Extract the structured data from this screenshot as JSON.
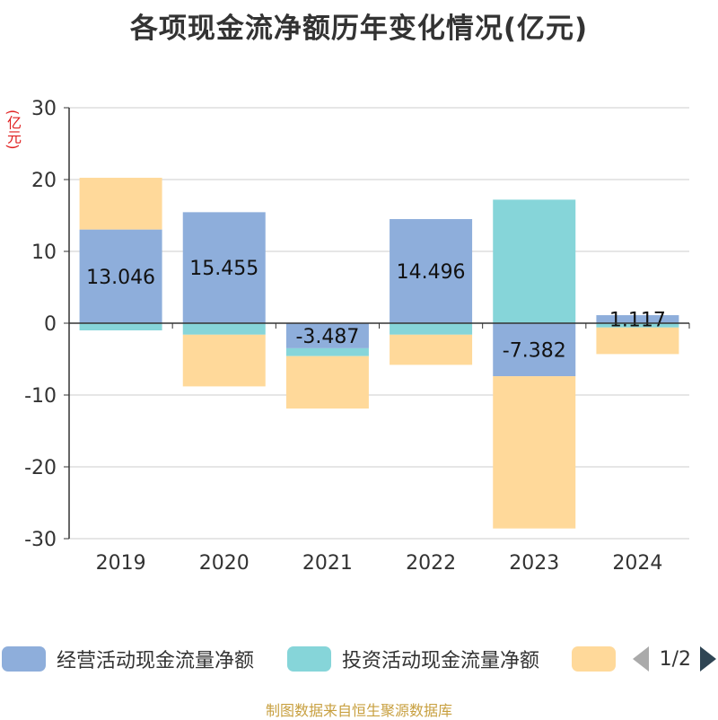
{
  "title": "各项现金流净额历年变化情况(亿元)",
  "unit_label": "(亿元)",
  "source": "制图数据来自恒生聚源数据库",
  "legend": {
    "items": [
      {
        "label": "经营活动现金流量净额",
        "color": "#8eaedb"
      },
      {
        "label": "投资活动现金流量净额",
        "color": "#86d5d9"
      },
      {
        "label": "",
        "color": "#ffd99a"
      }
    ],
    "page_text": "1/2"
  },
  "chart_data": {
    "type": "bar",
    "stacked": true,
    "categories": [
      "2019",
      "2020",
      "2021",
      "2022",
      "2023",
      "2024"
    ],
    "ylim": [
      -30,
      30
    ],
    "yticks": [
      30,
      20,
      10,
      0,
      -10,
      -20,
      -30
    ],
    "grid": true,
    "legend_position": "bottom",
    "series": [
      {
        "name": "经营活动现金流量净额",
        "color": "#8eaedb",
        "values": [
          13.046,
          15.455,
          -3.487,
          14.496,
          -7.382,
          1.117
        ],
        "labels": [
          "13.046",
          "15.455",
          "-3.487",
          "14.496",
          "-7.382",
          "1.117"
        ]
      },
      {
        "name": "投资活动现金流量净额",
        "color": "#86d5d9",
        "values": [
          -1.0,
          -1.6,
          -1.1,
          -1.6,
          17.2,
          -0.6
        ]
      },
      {
        "color": "#ffd99a",
        "values": [
          7.2,
          -7.2,
          -7.3,
          -4.2,
          -21.2,
          -3.7
        ]
      }
    ]
  }
}
